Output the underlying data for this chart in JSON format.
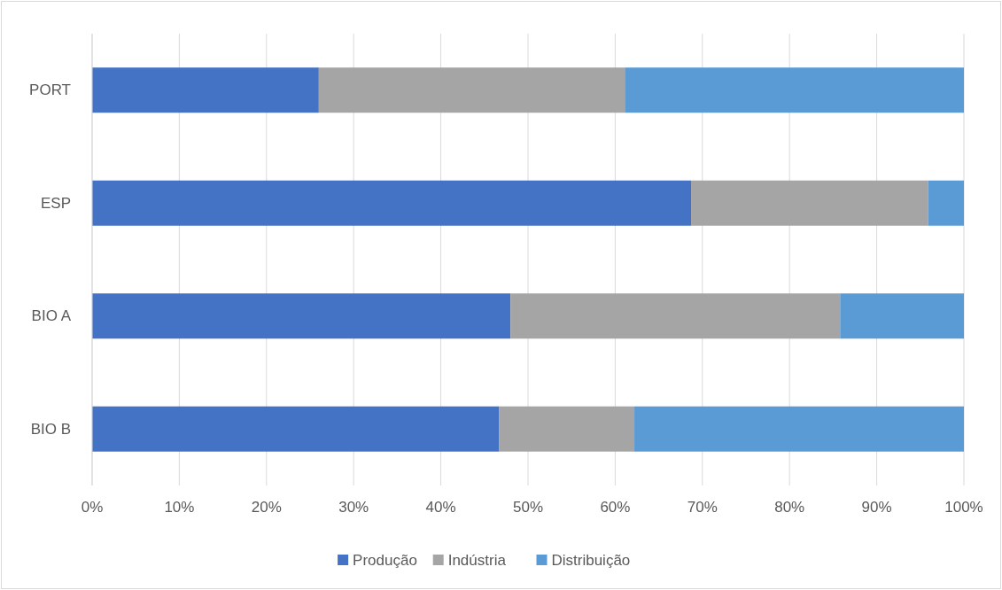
{
  "chart_data": {
    "type": "bar",
    "orientation": "horizontal",
    "stacked": true,
    "categories": [
      "PORT",
      "ESP",
      "BIO A",
      "BIO B"
    ],
    "series": [
      {
        "name": "Produção",
        "color": "#4472c4",
        "values": [
          26.0,
          68.7,
          48.0,
          46.7
        ]
      },
      {
        "name": "Indústria",
        "color": "#a5a5a5",
        "values": [
          35.1,
          27.2,
          37.8,
          15.5
        ]
      },
      {
        "name": "Distribuição",
        "color": "#5b9bd5",
        "values": [
          38.9,
          4.1,
          14.2,
          37.8
        ]
      }
    ],
    "xlim": [
      0,
      100
    ],
    "xticks": [
      {
        "value": 0,
        "label": "0%"
      },
      {
        "value": 10,
        "label": "10%"
      },
      {
        "value": 20,
        "label": "20%"
      },
      {
        "value": 30,
        "label": "30%"
      },
      {
        "value": 40,
        "label": "40%"
      },
      {
        "value": 50,
        "label": "50%"
      },
      {
        "value": 60,
        "label": "60%"
      },
      {
        "value": 70,
        "label": "70%"
      },
      {
        "value": 80,
        "label": "80%"
      },
      {
        "value": 90,
        "label": "90%"
      },
      {
        "value": 100,
        "label": "100%"
      }
    ],
    "grid": "x",
    "legend": "bottom"
  }
}
